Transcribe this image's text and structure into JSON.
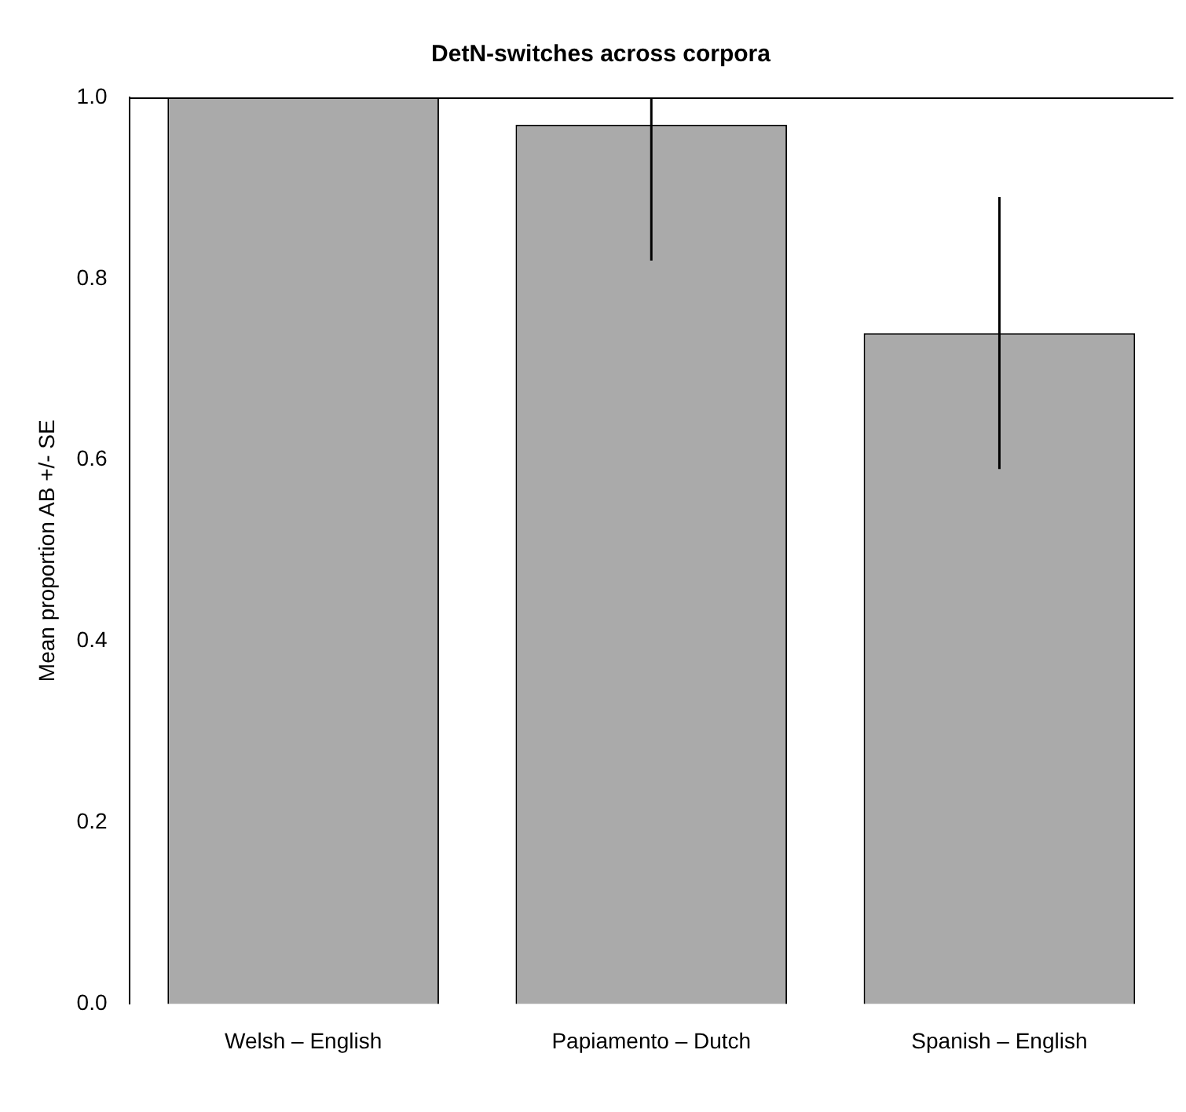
{
  "chart_data": {
    "type": "bar",
    "title": "DetN-switches across corpora",
    "ylabel": "Mean proportion AB +/- SE",
    "categories": [
      "Welsh – English",
      "Papiamento – Dutch",
      "Spanish – English"
    ],
    "values": [
      1.0,
      0.97,
      0.74
    ],
    "color": "#aaaaaa",
    "errors": [
      null,
      [
        0.82,
        1.0
      ],
      [
        0.59,
        0.89
      ]
    ],
    "ylim": [
      0,
      1
    ],
    "yticks": [
      {
        "value": 0,
        "label": "0.0"
      },
      {
        "value": 0.2,
        "label": "0.2"
      },
      {
        "value": 0.4,
        "label": "0.4"
      },
      {
        "value": 0.6,
        "label": "0.6"
      },
      {
        "value": 0.8,
        "label": "0.8"
      },
      {
        "value": 1,
        "label": "1.0"
      }
    ],
    "grid": false,
    "legend": false
  }
}
